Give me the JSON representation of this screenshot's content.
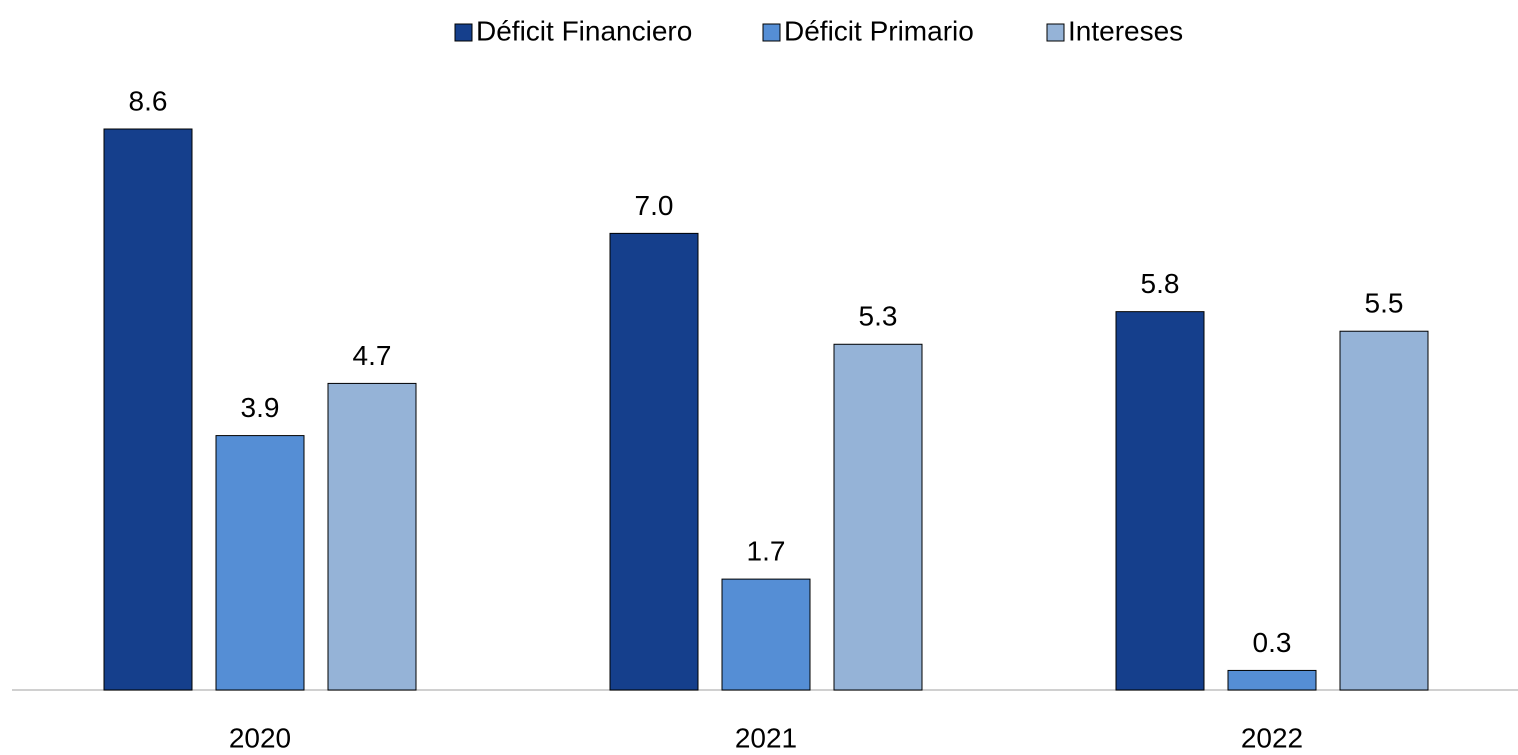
{
  "chart_data": {
    "type": "bar",
    "categories": [
      "2020",
      "2021",
      "2022"
    ],
    "series": [
      {
        "name": "Déficit Financiero",
        "color": "#153f8c",
        "values": [
          8.6,
          7.0,
          5.8
        ],
        "value_labels": [
          "8.6",
          "7.0",
          "5.8"
        ]
      },
      {
        "name": "Déficit Primario",
        "color": "#558ed5",
        "values": [
          3.9,
          1.7,
          0.3
        ],
        "value_labels": [
          "3.9",
          "1.7",
          "0.3"
        ]
      },
      {
        "name": "Intereses",
        "color": "#95b3d7",
        "values": [
          4.7,
          5.3,
          5.5
        ],
        "value_labels": [
          "4.7",
          "5.3",
          "5.5"
        ]
      }
    ],
    "legend": "top"
  }
}
